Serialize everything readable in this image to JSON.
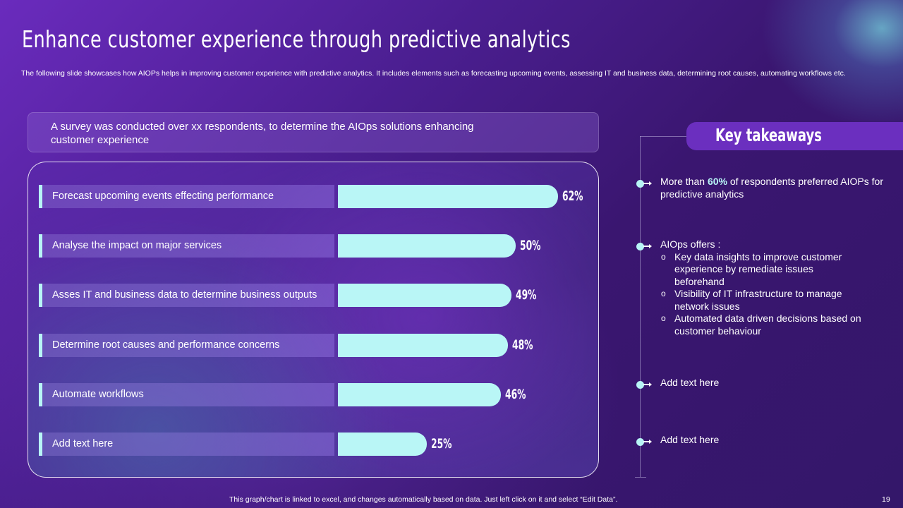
{
  "slide": {
    "title": "Enhance customer experience through predictive analytics",
    "subtitle": "The following slide showcases how AIOPs helps in improving customer experience with predictive analytics. It includes elements such as forecasting upcoming events, assessing IT and business data, determining root causes, automating workflows etc.",
    "survey_note": "A survey  was conducted over xx  respondents, to determine the AIOps solutions  enhancing customer experience",
    "footer_note": "This graph/chart is linked to excel,  and changes automatically based on data. Just left click on it and select “Edit Data”.",
    "page_number": "19"
  },
  "colors": {
    "accent_bar": "#b9f6f6",
    "header_purple": "#6b2fbf",
    "background_dark": "#3a1670"
  },
  "chart_data": {
    "type": "bar",
    "orientation": "horizontal",
    "title": "",
    "xlabel": "",
    "ylabel": "",
    "xlim": [
      0,
      100
    ],
    "grid": false,
    "categories": [
      "Forecast upcoming events effecting performance",
      "Analyse the impact on major services",
      "Asses IT and business data to determine business outputs",
      "Determine root causes and performance concerns",
      "Automate workflows",
      "Add text here"
    ],
    "values": [
      62,
      50,
      49,
      48,
      46,
      25
    ],
    "value_labels": [
      "62%",
      "50%",
      "49%",
      "48%",
      "46%",
      "25%"
    ],
    "unit": "%"
  },
  "key_takeaways": {
    "header": "Key takeaways",
    "item1": {
      "pre": "More than ",
      "highlight": "60%",
      "post": " of respondents preferred AIOPs for predictive analytics"
    },
    "item2": {
      "intro": "AIOps offers :",
      "bullets": [
        "Key data insights to improve customer experience by remediate issues beforehand",
        "Visibility  of IT  infrastructure to manage network issues",
        "Automated  data driven decisions based on customer behaviour"
      ]
    },
    "item3": "Add text here",
    "item4": "Add text here"
  }
}
